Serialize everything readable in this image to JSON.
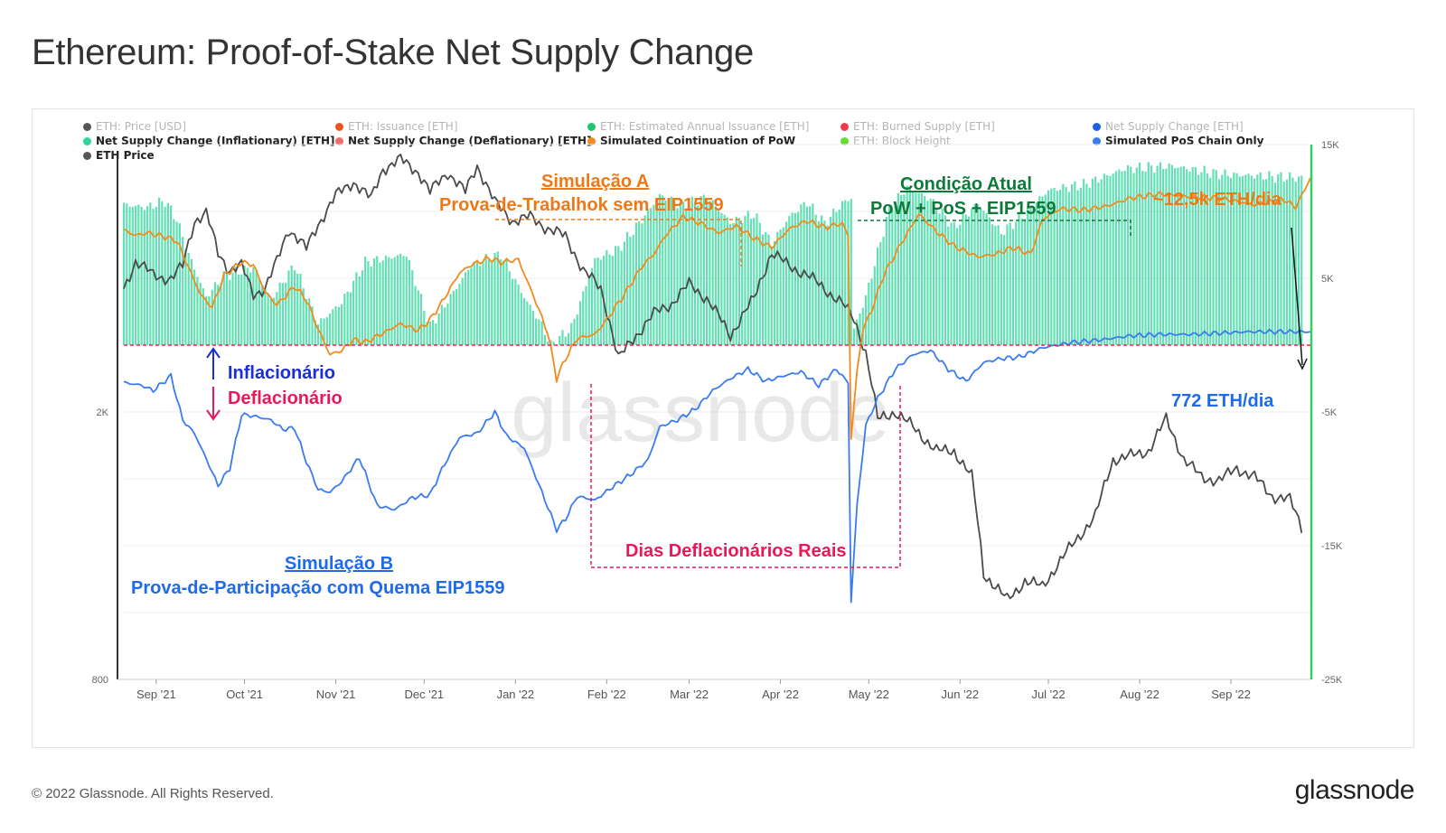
{
  "title": "Ethereum: Proof-of-Stake Net Supply Change",
  "footer": {
    "copyright": "© 2022 Glassnode. All Rights Reserved.",
    "logo": "glassnode"
  },
  "watermark": "glassnode",
  "legend": [
    {
      "label": "ETH: Price [USD]",
      "color": "#555555",
      "active": false
    },
    {
      "label": "ETH: Issuance [ETH]",
      "color": "#f0541e",
      "active": false
    },
    {
      "label": "ETH: Estimated Annual Issuance [ETH]",
      "color": "#1ec66e",
      "active": false
    },
    {
      "label": "ETH: Burned Supply [ETH]",
      "color": "#f03a4a",
      "active": false
    },
    {
      "label": "Net Supply Change [ETH]",
      "color": "#1f5fe8",
      "active": false
    },
    {
      "label": "Net Supply Change (Inflationary) [ETH]",
      "color": "#2ed69a",
      "active": true
    },
    {
      "label": "Net Supply Change (Deflationary) [ETH]",
      "color": "#f26a6a",
      "active": true
    },
    {
      "label": "Simulated Cointinuation of PoW",
      "color": "#f28a1e",
      "active": true
    },
    {
      "label": "ETH: Block Height",
      "color": "#66dd33",
      "active": false
    },
    {
      "label": "Simulated PoS Chain Only",
      "color": "#3a7bf0",
      "active": true
    },
    {
      "label": "ETH Price",
      "color": "#555555",
      "active": true
    }
  ],
  "annotations": {
    "sim_a_title": "Simulação A",
    "sim_a_sub": "Prova-de-Trabalhok sem EIP1559",
    "current_title": "Condição Atual",
    "current_sub": "PoW + PoS + EIP1559",
    "pow_rate": "~12,5k ETH/dia",
    "pos_rate": "772 ETH/dia",
    "inflationary": "Inflacionário",
    "deflationary": "Deflacionário",
    "deflationary_days": "Dias Deflacionários Reais",
    "sim_b_title": "Simulação B",
    "sim_b_sub": "Prova-de-Participação com Quema EIP1559"
  },
  "colors": {
    "inflation_bars": "#2ed69a",
    "pow_line": "#f28a1e",
    "pos_line": "#3a7bf0",
    "price_line": "#4a4a4a",
    "zero_line": "#e8234f",
    "annot_orange": "#f07814",
    "annot_green": "#0e7a3a",
    "annot_blue": "#1a2fd6",
    "annot_pink": "#e8185a",
    "annot_lightblue": "#1f6ae8"
  },
  "chart_data": {
    "type": "line",
    "x_ticks": [
      "Sep '21",
      "Oct '21",
      "Nov '21",
      "Dec '21",
      "Jan '22",
      "Feb '22",
      "Mar '22",
      "Apr '22",
      "May '22",
      "Jun '22",
      "Jul '22",
      "Aug '22",
      "Sep '22"
    ],
    "left_axis": {
      "label": "ETH Price",
      "scale": "log",
      "ticks": [
        "2K",
        "800"
      ],
      "range": [
        800,
        5000
      ]
    },
    "right_axis": {
      "ticks": [
        "15K",
        "5K",
        "-5K",
        "-15K",
        "-25K"
      ],
      "range": [
        -25000,
        15000
      ]
    },
    "x_range_days": [
      0,
      403
    ],
    "month_day_positions": [
      0,
      30,
      61,
      91,
      122,
      153,
      181,
      212,
      242,
      273,
      303,
      334,
      365
    ],
    "series": [
      {
        "name": "Net Supply Change (Inflationary) [ETH]",
        "kind": "bars",
        "keypoints": [
          [
            0,
            10500
          ],
          [
            8,
            10300
          ],
          [
            14,
            10800
          ],
          [
            18,
            9400
          ],
          [
            22,
            6800
          ],
          [
            28,
            3600
          ],
          [
            34,
            5200
          ],
          [
            44,
            5800
          ],
          [
            50,
            3400
          ],
          [
            58,
            6000
          ],
          [
            66,
            1600
          ],
          [
            74,
            3200
          ],
          [
            82,
            6200
          ],
          [
            96,
            6800
          ],
          [
            104,
            1400
          ],
          [
            110,
            3300
          ],
          [
            118,
            6000
          ],
          [
            128,
            6800
          ],
          [
            136,
            3600
          ],
          [
            142,
            1500
          ],
          [
            145,
            0
          ],
          [
            152,
            1300
          ],
          [
            160,
            6400
          ],
          [
            168,
            7200
          ],
          [
            176,
            9400
          ],
          [
            182,
            11200
          ],
          [
            190,
            10400
          ],
          [
            198,
            11100
          ],
          [
            206,
            9200
          ],
          [
            214,
            9800
          ],
          [
            220,
            7600
          ],
          [
            226,
            9600
          ],
          [
            232,
            10700
          ],
          [
            238,
            9100
          ],
          [
            244,
            10600
          ],
          [
            247,
            11000
          ],
          [
            248,
            1200
          ],
          [
            252,
            3600
          ],
          [
            260,
            10200
          ],
          [
            266,
            11800
          ],
          [
            274,
            10900
          ],
          [
            282,
            8800
          ],
          [
            290,
            10600
          ],
          [
            298,
            8400
          ],
          [
            306,
            9800
          ],
          [
            314,
            11600
          ],
          [
            326,
            12000
          ],
          [
            340,
            13200
          ],
          [
            356,
            13400
          ],
          [
            372,
            12800
          ],
          [
            400,
            12500
          ],
          [
            403,
            12600
          ]
        ]
      },
      {
        "name": "Simulated Cointinuation of PoW",
        "kind": "line",
        "keypoints": [
          [
            0,
            8600
          ],
          [
            4,
            8200
          ],
          [
            8,
            8400
          ],
          [
            14,
            8100
          ],
          [
            18,
            7800
          ],
          [
            22,
            5800
          ],
          [
            26,
            3800
          ],
          [
            30,
            2800
          ],
          [
            34,
            5200
          ],
          [
            40,
            6200
          ],
          [
            44,
            6000
          ],
          [
            48,
            4000
          ],
          [
            52,
            3000
          ],
          [
            58,
            4400
          ],
          [
            62,
            3400
          ],
          [
            66,
            1200
          ],
          [
            70,
            -700
          ],
          [
            74,
            -400
          ],
          [
            78,
            400
          ],
          [
            82,
            200
          ],
          [
            88,
            900
          ],
          [
            94,
            1600
          ],
          [
            100,
            1100
          ],
          [
            104,
            1900
          ],
          [
            108,
            3200
          ],
          [
            114,
            5400
          ],
          [
            118,
            6000
          ],
          [
            124,
            6500
          ],
          [
            128,
            6200
          ],
          [
            134,
            6400
          ],
          [
            140,
            3200
          ],
          [
            144,
            900
          ],
          [
            147,
            -2500
          ],
          [
            150,
            -1000
          ],
          [
            154,
            500
          ],
          [
            160,
            800
          ],
          [
            164,
            1900
          ],
          [
            170,
            3800
          ],
          [
            176,
            5900
          ],
          [
            180,
            6800
          ],
          [
            184,
            8200
          ],
          [
            190,
            9600
          ],
          [
            196,
            9100
          ],
          [
            202,
            8400
          ],
          [
            208,
            8900
          ],
          [
            214,
            8000
          ],
          [
            220,
            7300
          ],
          [
            226,
            8700
          ],
          [
            232,
            9300
          ],
          [
            238,
            8800
          ],
          [
            244,
            9100
          ],
          [
            246,
            8200
          ],
          [
            247,
            -7000
          ],
          [
            249,
            -2000
          ],
          [
            251,
            1200
          ],
          [
            254,
            2600
          ],
          [
            258,
            5200
          ],
          [
            264,
            7600
          ],
          [
            270,
            9800
          ],
          [
            276,
            8500
          ],
          [
            282,
            7400
          ],
          [
            290,
            6600
          ],
          [
            296,
            6800
          ],
          [
            302,
            7300
          ],
          [
            308,
            6800
          ],
          [
            312,
            9400
          ],
          [
            318,
            10200
          ],
          [
            326,
            10100
          ],
          [
            334,
            10400
          ],
          [
            342,
            11000
          ],
          [
            352,
            11300
          ],
          [
            362,
            11100
          ],
          [
            372,
            11000
          ],
          [
            384,
            10500
          ],
          [
            394,
            10900
          ],
          [
            398,
            10300
          ],
          [
            403,
            12500
          ]
        ]
      },
      {
        "name": "Simulated PoS Chain Only",
        "kind": "line",
        "keypoints": [
          [
            0,
            -2800
          ],
          [
            6,
            -3000
          ],
          [
            10,
            -3400
          ],
          [
            16,
            -2300
          ],
          [
            20,
            -5600
          ],
          [
            24,
            -6600
          ],
          [
            28,
            -8500
          ],
          [
            32,
            -10500
          ],
          [
            36,
            -9200
          ],
          [
            40,
            -5200
          ],
          [
            44,
            -5300
          ],
          [
            50,
            -5600
          ],
          [
            54,
            -6300
          ],
          [
            58,
            -6200
          ],
          [
            62,
            -8700
          ],
          [
            66,
            -10800
          ],
          [
            70,
            -11000
          ],
          [
            74,
            -10200
          ],
          [
            80,
            -8400
          ],
          [
            86,
            -12000
          ],
          [
            92,
            -12300
          ],
          [
            98,
            -11400
          ],
          [
            104,
            -11200
          ],
          [
            108,
            -9300
          ],
          [
            114,
            -6900
          ],
          [
            120,
            -6600
          ],
          [
            126,
            -5000
          ],
          [
            130,
            -6800
          ],
          [
            136,
            -7700
          ],
          [
            142,
            -11000
          ],
          [
            147,
            -13800
          ],
          [
            150,
            -13000
          ],
          [
            154,
            -11300
          ],
          [
            160,
            -11600
          ],
          [
            166,
            -10600
          ],
          [
            172,
            -9700
          ],
          [
            178,
            -8600
          ],
          [
            182,
            -6100
          ],
          [
            188,
            -5600
          ],
          [
            194,
            -4800
          ],
          [
            200,
            -3400
          ],
          [
            206,
            -2500
          ],
          [
            212,
            -1800
          ],
          [
            218,
            -2700
          ],
          [
            224,
            -2300
          ],
          [
            230,
            -2000
          ],
          [
            236,
            -3000
          ],
          [
            242,
            -1800
          ],
          [
            246,
            -2800
          ],
          [
            247,
            -19200
          ],
          [
            249,
            -12000
          ],
          [
            252,
            -6000
          ],
          [
            256,
            -4000
          ],
          [
            262,
            -1800
          ],
          [
            268,
            -700
          ],
          [
            274,
            -400
          ],
          [
            280,
            -1800
          ],
          [
            286,
            -2700
          ],
          [
            292,
            -1300
          ],
          [
            298,
            -1000
          ],
          [
            304,
            -900
          ],
          [
            312,
            -200
          ],
          [
            322,
            200
          ],
          [
            332,
            400
          ],
          [
            342,
            700
          ],
          [
            352,
            800
          ],
          [
            362,
            800
          ],
          [
            372,
            900
          ],
          [
            382,
            1000
          ],
          [
            392,
            1000
          ],
          [
            403,
            1000
          ]
        ]
      },
      {
        "name": "ETH Price",
        "kind": "line",
        "unit": "USD",
        "keypoints": [
          [
            0,
            3050
          ],
          [
            4,
            3350
          ],
          [
            10,
            3200
          ],
          [
            16,
            3150
          ],
          [
            20,
            3300
          ],
          [
            24,
            3850
          ],
          [
            28,
            3950
          ],
          [
            32,
            3450
          ],
          [
            36,
            3250
          ],
          [
            40,
            3300
          ],
          [
            44,
            3000
          ],
          [
            48,
            3050
          ],
          [
            52,
            3350
          ],
          [
            56,
            3750
          ],
          [
            62,
            3500
          ],
          [
            66,
            3800
          ],
          [
            72,
            4200
          ],
          [
            78,
            4400
          ],
          [
            84,
            4150
          ],
          [
            88,
            4600
          ],
          [
            94,
            4750
          ],
          [
            100,
            4550
          ],
          [
            104,
            4250
          ],
          [
            110,
            4550
          ],
          [
            116,
            4250
          ],
          [
            120,
            4650
          ],
          [
            126,
            4100
          ],
          [
            132,
            3850
          ],
          [
            138,
            3900
          ],
          [
            144,
            3750
          ],
          [
            150,
            3650
          ],
          [
            156,
            3250
          ],
          [
            162,
            3050
          ],
          [
            168,
            2400
          ],
          [
            174,
            2600
          ],
          [
            180,
            2800
          ],
          [
            186,
            2900
          ],
          [
            192,
            3100
          ],
          [
            198,
            2950
          ],
          [
            206,
            2600
          ],
          [
            214,
            2950
          ],
          [
            220,
            3450
          ],
          [
            226,
            3300
          ],
          [
            232,
            3200
          ],
          [
            238,
            3050
          ],
          [
            244,
            2900
          ],
          [
            248,
            2750
          ],
          [
            252,
            2450
          ],
          [
            256,
            1950
          ],
          [
            262,
            2000
          ],
          [
            268,
            1900
          ],
          [
            276,
            1750
          ],
          [
            282,
            1750
          ],
          [
            288,
            1600
          ],
          [
            292,
            1150
          ],
          [
            300,
            1050
          ],
          [
            306,
            1120
          ],
          [
            312,
            1100
          ],
          [
            318,
            1200
          ],
          [
            324,
            1300
          ],
          [
            330,
            1400
          ],
          [
            336,
            1700
          ],
          [
            342,
            1720
          ],
          [
            348,
            1750
          ],
          [
            354,
            1950
          ],
          [
            360,
            1700
          ],
          [
            366,
            1600
          ],
          [
            372,
            1580
          ],
          [
            378,
            1650
          ],
          [
            384,
            1600
          ],
          [
            390,
            1500
          ],
          [
            396,
            1480
          ],
          [
            400,
            1350
          ]
        ]
      }
    ]
  }
}
